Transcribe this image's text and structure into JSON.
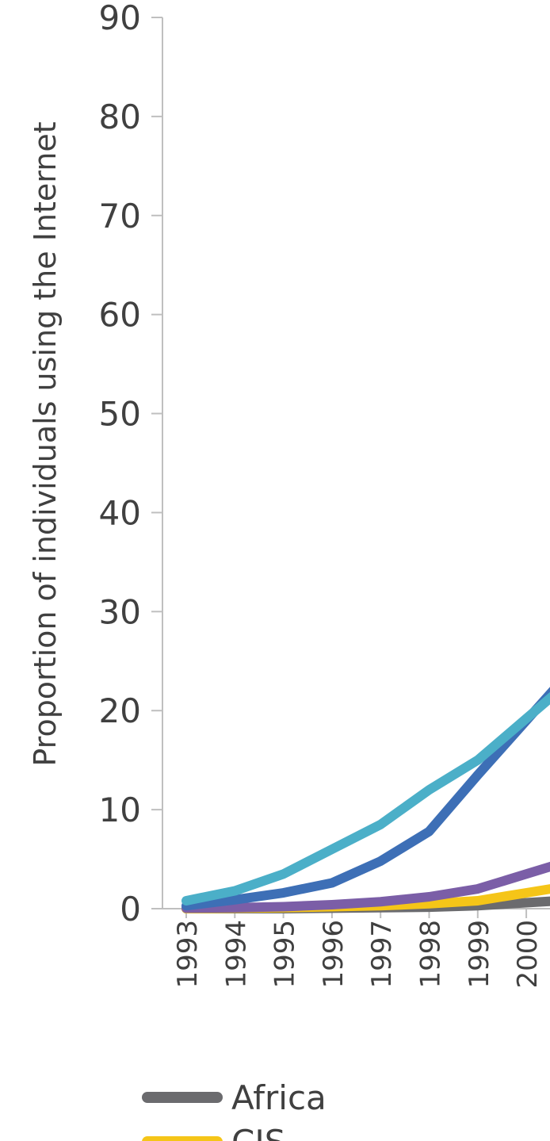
{
  "chart_data": {
    "type": "line",
    "ylabel": "Proportion of individuals using the Internet",
    "xlabel": "",
    "ylim": [
      0,
      90
    ],
    "yticks": [
      0,
      10,
      20,
      30,
      40,
      50,
      60,
      70,
      80,
      90
    ],
    "x": [
      "1993",
      "1994",
      "1995",
      "1996",
      "1997",
      "1998",
      "1999",
      "2000"
    ],
    "x_range": [
      "1993",
      "2000.3"
    ],
    "grid": false,
    "legend_position": "bottom-left",
    "series": [
      {
        "name": "Africa",
        "color": "#6b6b6e",
        "values": [
          0.0,
          0.0,
          0.0,
          0.05,
          0.1,
          0.15,
          0.3,
          0.6
        ]
      },
      {
        "name": "CIS",
        "color": "#f5c518",
        "values": [
          0.0,
          0.05,
          0.1,
          0.2,
          0.3,
          0.5,
          0.8,
          1.6
        ]
      },
      {
        "name": "",
        "color": "#7b5ea7",
        "values": [
          0.05,
          0.1,
          0.2,
          0.4,
          0.7,
          1.2,
          2.0,
          3.5
        ]
      },
      {
        "name": "",
        "color": "#3d6fb6",
        "values": [
          0.3,
          0.9,
          1.6,
          2.6,
          4.8,
          7.8,
          13.5,
          19.0
        ]
      },
      {
        "name": "",
        "color": "#4bafc8",
        "values": [
          0.8,
          1.8,
          3.5,
          6.0,
          8.5,
          12.0,
          15.0,
          19.2
        ]
      }
    ]
  }
}
